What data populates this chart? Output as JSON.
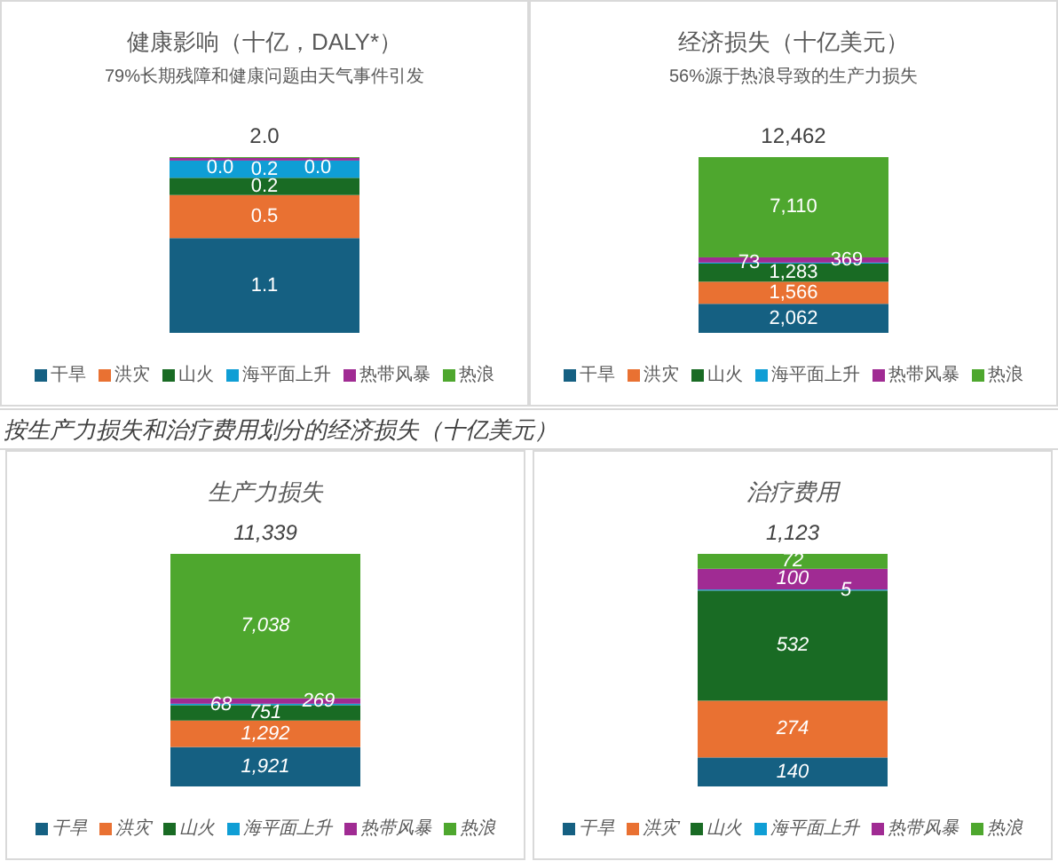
{
  "chart_data": [
    {
      "type": "bar",
      "title": "健康影响（十亿，DALY*）",
      "subtitle": "79%长期残障和健康问题由天气事件引发",
      "categories": [
        null
      ],
      "stacked": true,
      "legend": "bottom",
      "totals": [
        "2.0"
      ],
      "series": [
        {
          "name": "干旱",
          "color": "#156082",
          "values": [
            1.1
          ],
          "value_labels": [
            "1.1"
          ]
        },
        {
          "name": "洪灾",
          "color": "#e97132",
          "values": [
            0.5
          ],
          "value_labels": [
            "0.5"
          ]
        },
        {
          "name": "山火",
          "color": "#196b24",
          "values": [
            0.2
          ],
          "value_labels": [
            "0.2"
          ]
        },
        {
          "name": "海平面上升",
          "color": "#0f9ed5",
          "values": [
            0.2
          ],
          "value_labels": [
            "0.2"
          ]
        },
        {
          "name": "热带风暴",
          "color": "#a02b93",
          "values": [
            0.03
          ],
          "value_labels": [
            "0.0"
          ]
        },
        {
          "name": "热浪",
          "color": "#4ea72e",
          "values": [
            0.01
          ],
          "value_labels": [
            "0.0"
          ]
        }
      ]
    },
    {
      "type": "bar",
      "title": "经济损失（十亿美元）",
      "subtitle": "56%源于热浪导致的生产力损失",
      "categories": [
        null
      ],
      "stacked": true,
      "legend": "bottom",
      "totals": [
        "12,462"
      ],
      "series": [
        {
          "name": "干旱",
          "color": "#156082",
          "values": [
            2062
          ],
          "value_labels": [
            "2,062"
          ]
        },
        {
          "name": "洪灾",
          "color": "#e97132",
          "values": [
            1566
          ],
          "value_labels": [
            "1,566"
          ]
        },
        {
          "name": "山火",
          "color": "#196b24",
          "values": [
            1283
          ],
          "value_labels": [
            "1,283"
          ]
        },
        {
          "name": "海平面上升",
          "color": "#0f9ed5",
          "values": [
            73
          ],
          "value_labels": [
            "73"
          ]
        },
        {
          "name": "热带风暴",
          "color": "#a02b93",
          "values": [
            369
          ],
          "value_labels": [
            "369"
          ]
        },
        {
          "name": "热浪",
          "color": "#4ea72e",
          "values": [
            7110
          ],
          "value_labels": [
            "7,110"
          ]
        }
      ]
    },
    {
      "type": "bar",
      "title": "生产力损失",
      "annotations": [
        "按生产力损失和治疗费用划分的经济损失（十亿美元）"
      ],
      "categories": [
        null
      ],
      "stacked": true,
      "legend": "bottom",
      "totals": [
        "11,339"
      ],
      "series": [
        {
          "name": "干旱",
          "color": "#156082",
          "values": [
            1921
          ],
          "value_labels": [
            "1,921"
          ]
        },
        {
          "name": "洪灾",
          "color": "#e97132",
          "values": [
            1292
          ],
          "value_labels": [
            "1,292"
          ]
        },
        {
          "name": "山火",
          "color": "#196b24",
          "values": [
            751
          ],
          "value_labels": [
            "751"
          ]
        },
        {
          "name": "海平面上升",
          "color": "#0f9ed5",
          "values": [
            68
          ],
          "value_labels": [
            "68"
          ]
        },
        {
          "name": "热带风暴",
          "color": "#a02b93",
          "values": [
            269
          ],
          "value_labels": [
            "269"
          ]
        },
        {
          "name": "热浪",
          "color": "#4ea72e",
          "values": [
            7038
          ],
          "value_labels": [
            "7,038"
          ]
        }
      ]
    },
    {
      "type": "bar",
      "title": "治疗费用",
      "categories": [
        null
      ],
      "stacked": true,
      "legend": "bottom",
      "totals": [
        "1,123"
      ],
      "series": [
        {
          "name": "干旱",
          "color": "#156082",
          "values": [
            140
          ],
          "value_labels": [
            "140"
          ]
        },
        {
          "name": "洪灾",
          "color": "#e97132",
          "values": [
            274
          ],
          "value_labels": [
            "274"
          ]
        },
        {
          "name": "山火",
          "color": "#196b24",
          "values": [
            532
          ],
          "value_labels": [
            "532"
          ]
        },
        {
          "name": "海平面上升",
          "color": "#0f9ed5",
          "values": [
            5
          ],
          "value_labels": [
            "5"
          ]
        },
        {
          "name": "热带风暴",
          "color": "#a02b93",
          "values": [
            100
          ],
          "value_labels": [
            "100"
          ]
        },
        {
          "name": "热浪",
          "color": "#4ea72e",
          "values": [
            72
          ],
          "value_labels": [
            "72"
          ]
        }
      ]
    }
  ]
}
